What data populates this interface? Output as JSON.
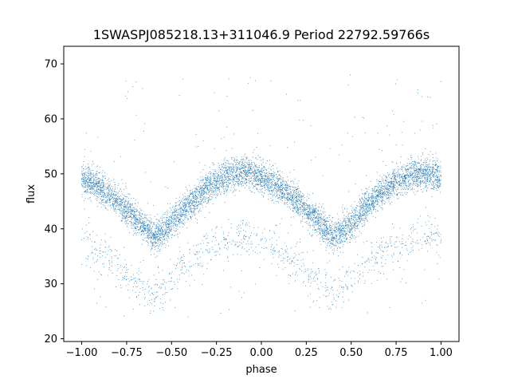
{
  "chart_data": {
    "type": "scatter",
    "title": "1SWASPJ085218.13+311046.9 Period 22792.59766s",
    "xlabel": "phase",
    "ylabel": "flux",
    "xlim": [
      -1.1,
      1.1
    ],
    "ylim": [
      19.5,
      73.2
    ],
    "xticks": [
      -1.0,
      -0.75,
      -0.5,
      -0.25,
      0.0,
      0.25,
      0.5,
      0.75,
      1.0
    ],
    "xtick_labels": [
      "−1.00",
      "−0.75",
      "−0.50",
      "−0.25",
      "0.00",
      "0.25",
      "0.50",
      "0.75",
      "1.00"
    ],
    "yticks": [
      20,
      30,
      40,
      50,
      60,
      70
    ],
    "ytick_labels": [
      "20",
      "30",
      "40",
      "50",
      "60",
      "70"
    ],
    "grid": false,
    "series_color": "#1f77b4",
    "series": [
      {
        "points_description": "dense phase-folded light curve",
        "x": [
          -1.0,
          -0.9,
          -0.8,
          -0.7,
          -0.6,
          -0.5,
          -0.4,
          -0.3,
          -0.2,
          -0.1,
          0.0,
          0.1,
          0.2,
          0.3,
          0.4,
          0.5,
          0.6,
          0.7,
          0.8,
          0.9,
          1.0
        ],
        "y": [
          49.0,
          47.5,
          45.0,
          42.0,
          38.5,
          41.0,
          44.5,
          47.5,
          49.5,
          50.5,
          49.5,
          47.5,
          45.0,
          42.0,
          38.5,
          41.0,
          44.5,
          47.5,
          49.5,
          50.0,
          49.5
        ]
      },
      {
        "x": [
          -1.0,
          -0.9,
          -0.8,
          -0.7,
          -0.6,
          -0.5,
          -0.4,
          -0.3,
          -0.2,
          -0.1,
          0.0,
          0.1,
          0.2,
          0.3,
          0.4,
          0.5,
          0.6,
          0.7,
          0.8,
          0.9,
          1.0
        ],
        "y": [
          38.0,
          36.0,
          33.5,
          30.5,
          28.0,
          31.0,
          34.0,
          36.0,
          37.0,
          38.5,
          38.0,
          36.0,
          33.5,
          30.5,
          28.0,
          31.0,
          34.0,
          36.0,
          37.0,
          38.5,
          38.0
        ]
      }
    ]
  }
}
